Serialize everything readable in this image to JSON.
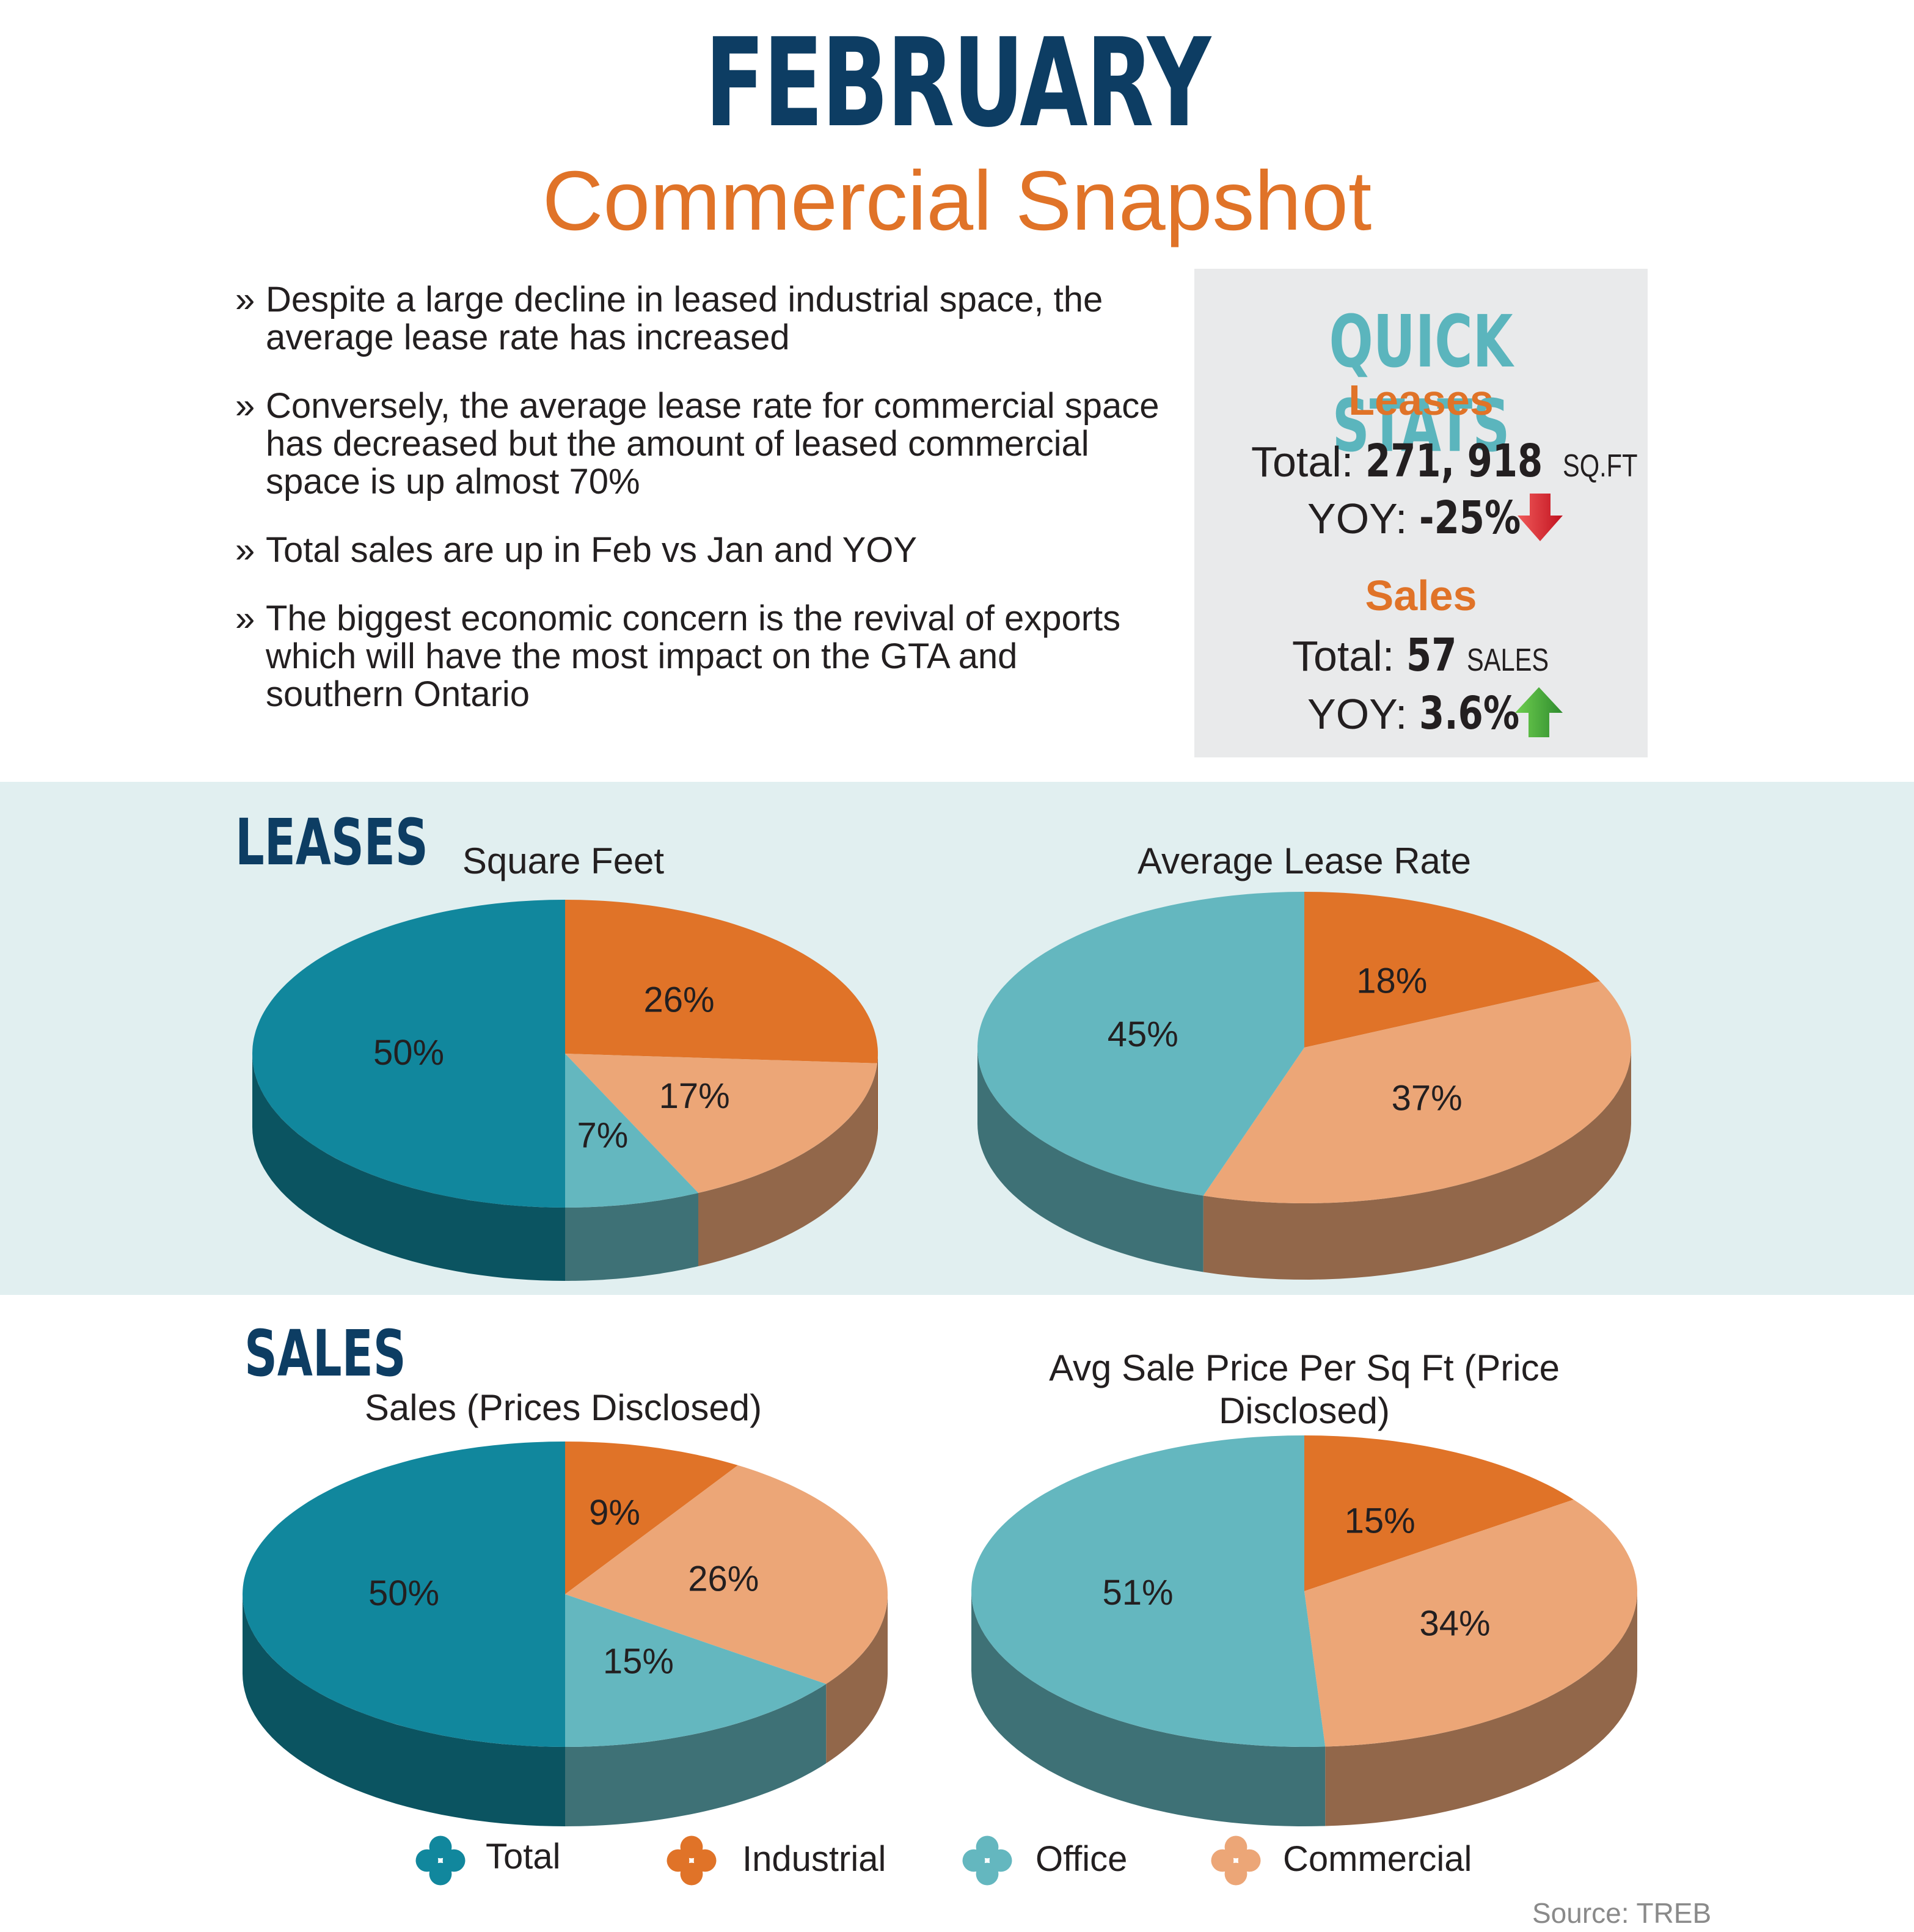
{
  "header": {
    "title": "FEBRUARY",
    "subtitle": "Commercial Snapshot"
  },
  "bullets": [
    "Despite a large decline in leased industrial space, the average lease rate has increased",
    "Conversely, the average lease rate for commercial space has decreased but the amount of leased commercial space is up almost 70%",
    "Total sales are up in Feb vs Jan and YOY",
    "The biggest economic concern is the revival of exports which will have the most impact on the GTA and southern Ontario"
  ],
  "bullet_marker": "»",
  "quick_stats": {
    "title": "QUICK STATS",
    "leases": {
      "heading": "Leases",
      "total_label": "Total:",
      "total_value": "271, 918",
      "total_unit": "SQ.FT",
      "yoy_label": "YOY:",
      "yoy_value": "-25%",
      "arrow": "down-arrow-icon"
    },
    "sales": {
      "heading": "Sales",
      "total_label": "Total:",
      "total_value": "57",
      "total_unit": "SALES",
      "yoy_label": "YOY:",
      "yoy_value": "3.6%",
      "arrow": "up-arrow-icon"
    }
  },
  "sections": {
    "leases": "LEASES",
    "sales": "SALES"
  },
  "colors": {
    "Total": "#11879d",
    "Industrial": "#e07328",
    "Office": "#64b7bf",
    "Commercial": "#eca677"
  },
  "chart_data": [
    {
      "type": "pie",
      "title": "Square Feet",
      "categories": [
        "Industrial",
        "Commercial",
        "Office",
        "Total"
      ],
      "values": [
        26,
        17,
        7,
        50
      ],
      "labels": [
        "26%",
        "17%",
        "7%",
        "50%"
      ]
    },
    {
      "type": "pie",
      "title": "Average Lease Rate",
      "categories": [
        "Industrial",
        "Commercial",
        "Office"
      ],
      "values": [
        18,
        37,
        45
      ],
      "labels": [
        "18%",
        "37%",
        "45%"
      ]
    },
    {
      "type": "pie",
      "title": "Sales (Prices Disclosed)",
      "categories": [
        "Industrial",
        "Commercial",
        "Office",
        "Total"
      ],
      "values": [
        9,
        26,
        15,
        50
      ],
      "labels": [
        "9%",
        "26%",
        "15%",
        "50%"
      ]
    },
    {
      "type": "pie",
      "title": "Avg Sale Price Per Sq Ft (Price Disclosed)",
      "categories": [
        "Industrial",
        "Commercial",
        "Office"
      ],
      "values": [
        15,
        34,
        51
      ],
      "labels": [
        "15%",
        "34%",
        "51%"
      ]
    }
  ],
  "legend": [
    {
      "label": "Total",
      "icon": "flower-icon"
    },
    {
      "label": "Industrial",
      "icon": "flower-icon"
    },
    {
      "label": "Office",
      "icon": "flower-icon"
    },
    {
      "label": "Commercial",
      "icon": "flower-icon"
    }
  ],
  "source": "Source: TREB"
}
